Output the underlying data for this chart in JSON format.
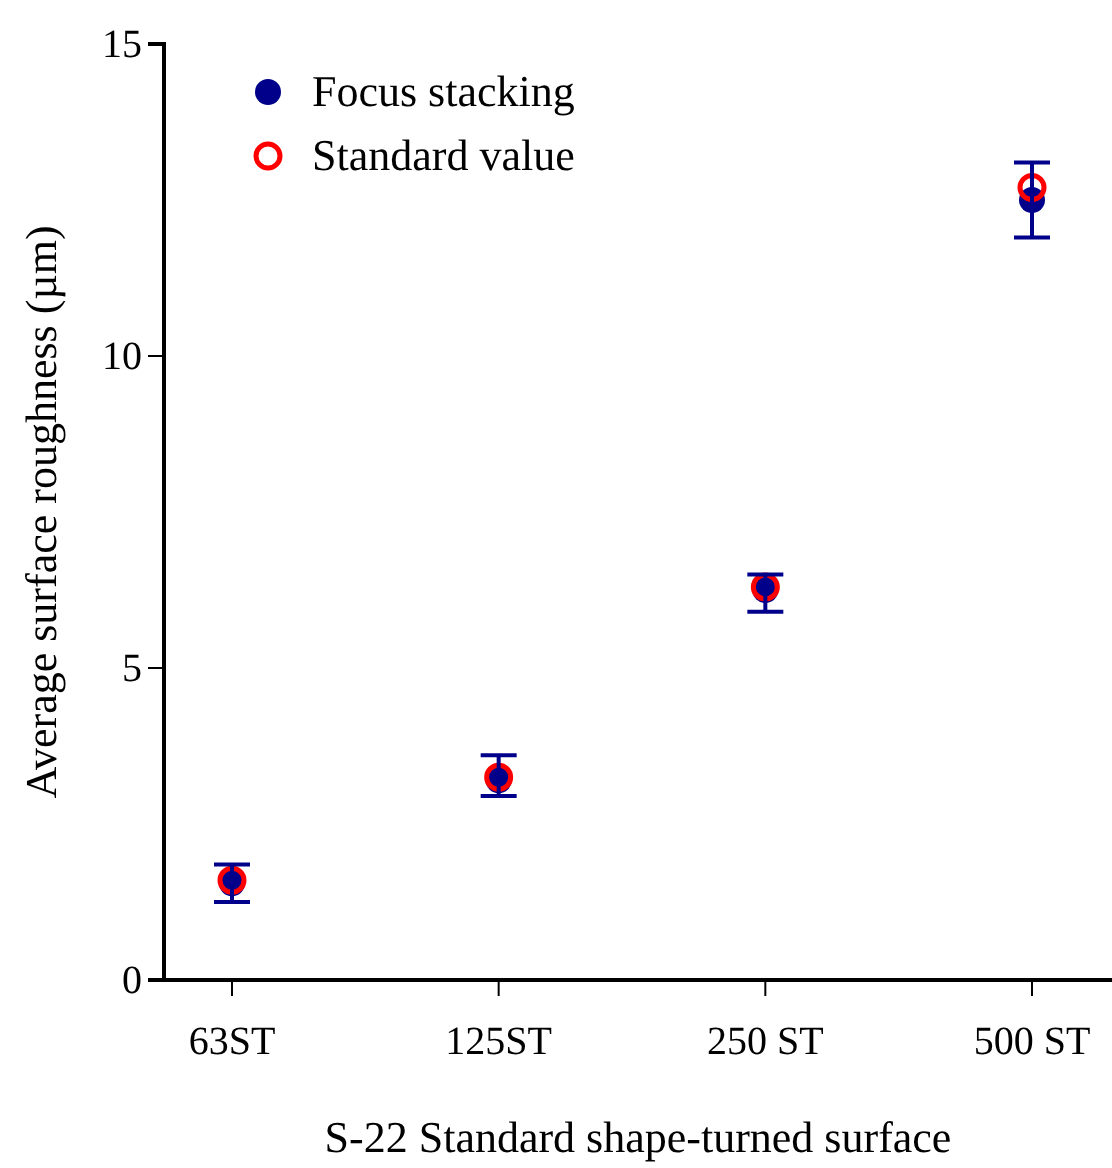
{
  "chart_data": {
    "type": "scatter",
    "xlabel": "S-22 Standard shape-turned surface",
    "ylabel": "Average surface roughness (µm)",
    "categories": [
      "63ST",
      "125ST",
      "250 ST",
      "500 ST"
    ],
    "ylim": [
      0,
      15
    ],
    "yticks": [
      0,
      5,
      10,
      15
    ],
    "legend": "top left",
    "grid": false,
    "marker": "circle",
    "series": [
      {
        "name": "Focus stacking",
        "color": "#00008b",
        "values": [
          1.55,
          3.2,
          6.25,
          12.5
        ],
        "errors": [
          [
            1.25,
            1.85
          ],
          [
            2.95,
            3.6
          ],
          [
            5.9,
            6.5
          ],
          [
            11.9,
            13.1
          ]
        ]
      },
      {
        "name": "Standard value",
        "color": "#ff0000",
        "values": [
          1.6,
          3.25,
          6.3,
          12.7
        ]
      }
    ]
  }
}
